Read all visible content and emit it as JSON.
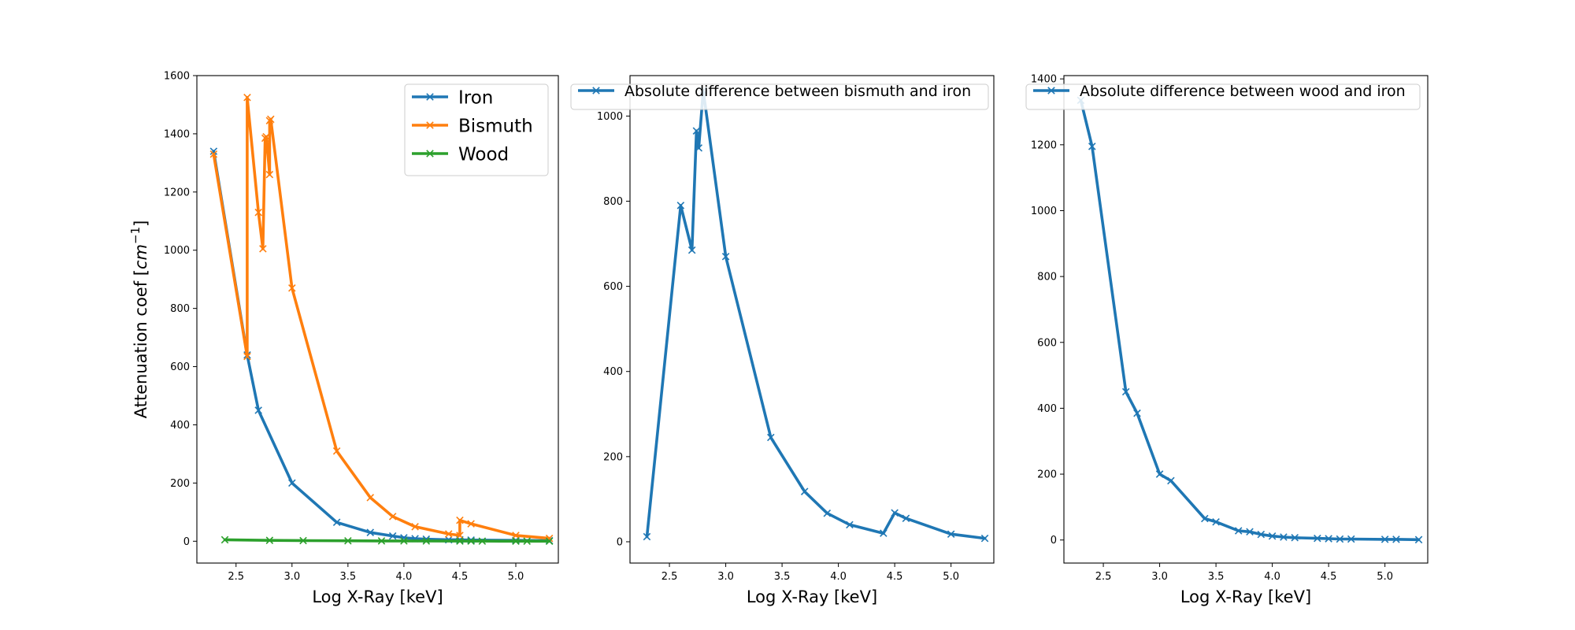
{
  "chart_data": [
    {
      "type": "line",
      "xlabel": "Log X-Ray [keV]",
      "ylabel_prefix": "Attenuation coef [",
      "ylabel_unit": "cm",
      "ylabel_exp": "−1",
      "ylabel_suffix": "]",
      "xlim": [
        2.15,
        5.38
      ],
      "ylim": [
        -75,
        1600
      ],
      "xticks": [
        2.5,
        3.0,
        3.5,
        4.0,
        4.5,
        5.0
      ],
      "xtick_labels": [
        "2.5",
        "3.0",
        "3.5",
        "4.0",
        "4.5",
        "5.0"
      ],
      "yticks": [
        0,
        200,
        400,
        600,
        800,
        1000,
        1200,
        1400,
        1600
      ],
      "ytick_labels": [
        "0",
        "200",
        "400",
        "600",
        "800",
        "1000",
        "1200",
        "1400",
        "1600"
      ],
      "legend_position": "top-right",
      "series": [
        {
          "name": "Iron",
          "color": "#1f77b4",
          "x": [
            2.3,
            2.6,
            2.7,
            3.0,
            3.4,
            3.7,
            3.9,
            4.0,
            4.1,
            4.2,
            4.4,
            4.5,
            4.6,
            5.0,
            5.3
          ],
          "y": [
            1340,
            640,
            450,
            200,
            65,
            30,
            18,
            12,
            9,
            7,
            5,
            5,
            4,
            3,
            2
          ]
        },
        {
          "name": "Bismuth",
          "color": "#ff7f0e",
          "x": [
            2.3,
            2.6,
            2.6,
            2.7,
            2.74,
            2.76,
            2.77,
            2.8,
            2.8,
            2.81,
            3.0,
            3.4,
            3.7,
            3.9,
            4.1,
            4.4,
            4.5,
            4.5,
            4.6,
            5.0,
            5.3
          ],
          "y": [
            1330,
            635,
            1525,
            1130,
            1005,
            1385,
            1390,
            1260,
            1445,
            1450,
            870,
            310,
            150,
            85,
            50,
            25,
            20,
            72,
            60,
            20,
            10
          ]
        },
        {
          "name": "Wood",
          "color": "#2ca02c",
          "x": [
            2.4,
            2.8,
            3.1,
            3.5,
            3.8,
            4.0,
            4.2,
            4.5,
            4.6,
            4.7,
            5.0,
            5.1,
            5.3
          ],
          "y": [
            5,
            3,
            2,
            1.5,
            1,
            1,
            0.8,
            0.5,
            0.5,
            0.4,
            0.3,
            0.3,
            0.2
          ]
        }
      ]
    },
    {
      "type": "line",
      "xlabel": "Log X-Ray [keV]",
      "xlim": [
        2.15,
        5.38
      ],
      "ylim": [
        -50,
        1095
      ],
      "xticks": [
        2.5,
        3.0,
        3.5,
        4.0,
        4.5,
        5.0
      ],
      "xtick_labels": [
        "2.5",
        "3.0",
        "3.5",
        "4.0",
        "4.5",
        "5.0"
      ],
      "yticks": [
        0,
        200,
        400,
        600,
        800,
        1000
      ],
      "ytick_labels": [
        "0",
        "200",
        "400",
        "600",
        "800",
        "1000"
      ],
      "legend_position": "top-right",
      "series": [
        {
          "name": "Absolute difference between bismuth and iron",
          "color": "#1f77b4",
          "x": [
            2.3,
            2.6,
            2.7,
            2.74,
            2.76,
            2.8,
            3.0,
            3.4,
            3.7,
            3.9,
            4.1,
            4.4,
            4.5,
            4.6,
            5.0,
            5.3
          ],
          "y": [
            12,
            790,
            685,
            965,
            925,
            1060,
            670,
            245,
            118,
            67,
            40,
            20,
            68,
            55,
            18,
            8
          ]
        }
      ]
    },
    {
      "type": "line",
      "xlabel": "Log X-Ray [keV]",
      "xlim": [
        2.15,
        5.38
      ],
      "ylim": [
        -70,
        1410
      ],
      "xticks": [
        2.5,
        3.0,
        3.5,
        4.0,
        4.5,
        5.0
      ],
      "xtick_labels": [
        "2.5",
        "3.0",
        "3.5",
        "4.0",
        "4.5",
        "5.0"
      ],
      "yticks": [
        0,
        200,
        400,
        600,
        800,
        1000,
        1200,
        1400
      ],
      "ytick_labels": [
        "0",
        "200",
        "400",
        "600",
        "800",
        "1000",
        "1200",
        "1400"
      ],
      "legend_position": "top-right",
      "series": [
        {
          "name": "Absolute difference between wood and iron",
          "color": "#1f77b4",
          "x": [
            2.3,
            2.4,
            2.7,
            2.8,
            3.0,
            3.1,
            3.4,
            3.5,
            3.7,
            3.8,
            3.9,
            4.0,
            4.1,
            4.2,
            4.4,
            4.5,
            4.6,
            4.7,
            5.0,
            5.1,
            5.3
          ],
          "y": [
            1335,
            1195,
            450,
            385,
            200,
            180,
            65,
            55,
            28,
            25,
            17,
            12,
            9,
            7,
            5,
            4,
            3,
            3,
            2,
            2,
            1
          ]
        }
      ]
    }
  ]
}
